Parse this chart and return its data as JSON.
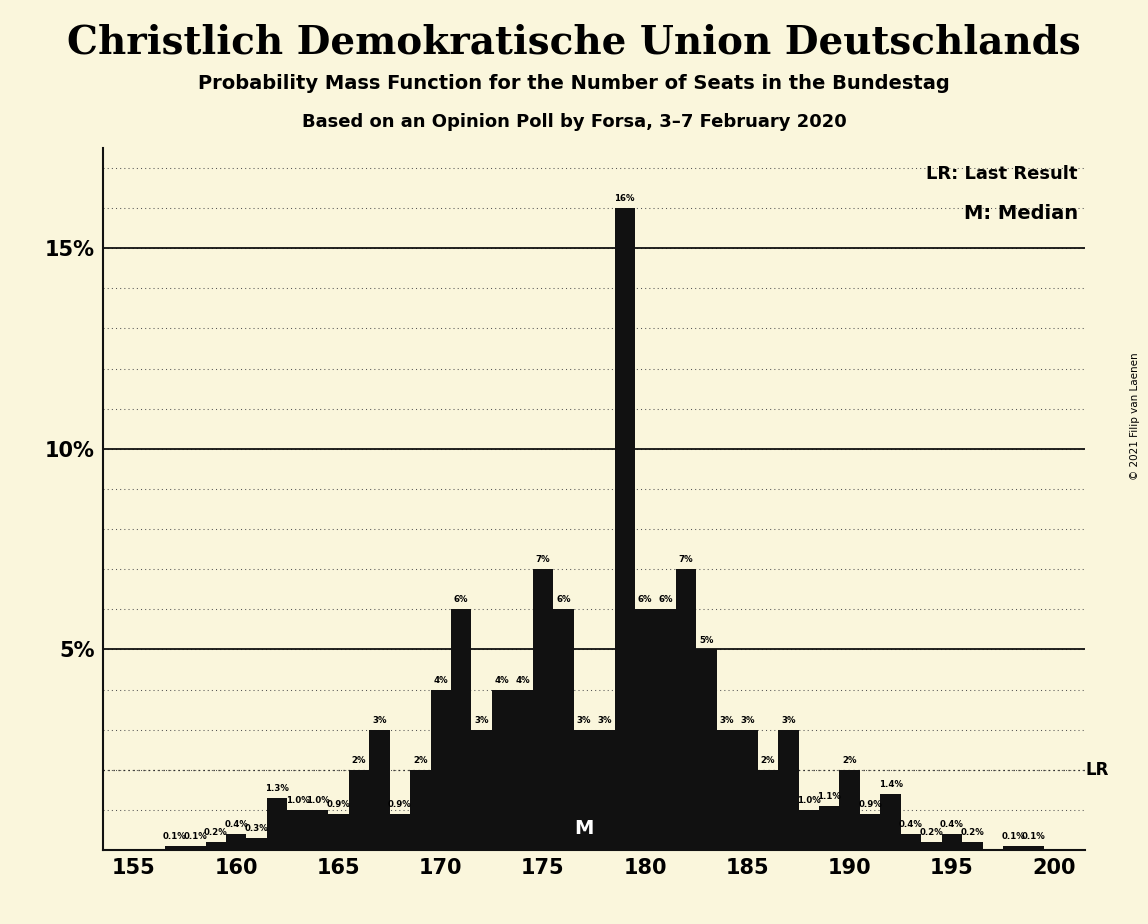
{
  "title": "Christlich Demokratische Union Deutschlands",
  "subtitle1": "Probability Mass Function for the Number of Seats in the Bundestag",
  "subtitle2": "Based on an Opinion Poll by Forsa, 3–7 February 2020",
  "copyright": "© 2021 Filip van Laenen",
  "background_color": "#FAF6DC",
  "bar_color": "#111111",
  "seats": [
    155,
    156,
    157,
    158,
    159,
    160,
    161,
    162,
    163,
    164,
    165,
    166,
    167,
    168,
    169,
    170,
    171,
    172,
    173,
    174,
    175,
    176,
    177,
    178,
    179,
    180,
    181,
    182,
    183,
    184,
    185,
    186,
    187,
    188,
    189,
    190,
    191,
    192,
    193,
    194,
    195,
    196,
    197,
    198,
    199,
    200
  ],
  "values": [
    0.0,
    0.0,
    0.1,
    0.1,
    0.2,
    0.4,
    0.3,
    1.3,
    1.0,
    1.0,
    0.9,
    2.0,
    3.0,
    0.9,
    2.0,
    4.0,
    6.0,
    3.0,
    4.0,
    4.0,
    7.0,
    6.0,
    3.0,
    3.0,
    16.0,
    6.0,
    6.0,
    7.0,
    5.0,
    3.0,
    3.0,
    2.0,
    3.0,
    1.0,
    1.1,
    2.0,
    0.9,
    1.4,
    0.4,
    0.2,
    0.4,
    0.2,
    0.0,
    0.1,
    0.1,
    0.0
  ],
  "labels": [
    "0%",
    "0%",
    "0.1%",
    "0.1%",
    "0.2%",
    "0.4%",
    "0.3%",
    "1.3%",
    "1.0%",
    "1.0%",
    "0.9%",
    "2%",
    "3%",
    "0.9%",
    "2%",
    "4%",
    "6%",
    "3%",
    "4%",
    "4%",
    "7%",
    "6%",
    "3%",
    "3%",
    "16%",
    "6%",
    "6%",
    "7%",
    "5%",
    "3%",
    "3%",
    "2%",
    "3%",
    "1.0%",
    "1.1%",
    "2%",
    "0.9%",
    "1.4%",
    "0.4%",
    "0.2%",
    "0.4%",
    "0.2%",
    "0%",
    "0.1%",
    "0.1%",
    "0%"
  ],
  "median_seat": 177,
  "lr_value": 2.0,
  "xlim": [
    153.5,
    201.5
  ],
  "ylim": [
    0,
    17.5
  ],
  "xticks": [
    155,
    160,
    165,
    170,
    175,
    180,
    185,
    190,
    195,
    200
  ],
  "yticks": [
    5,
    10,
    15
  ],
  "ytick_labels": [
    "5%",
    "10%",
    "15%"
  ]
}
